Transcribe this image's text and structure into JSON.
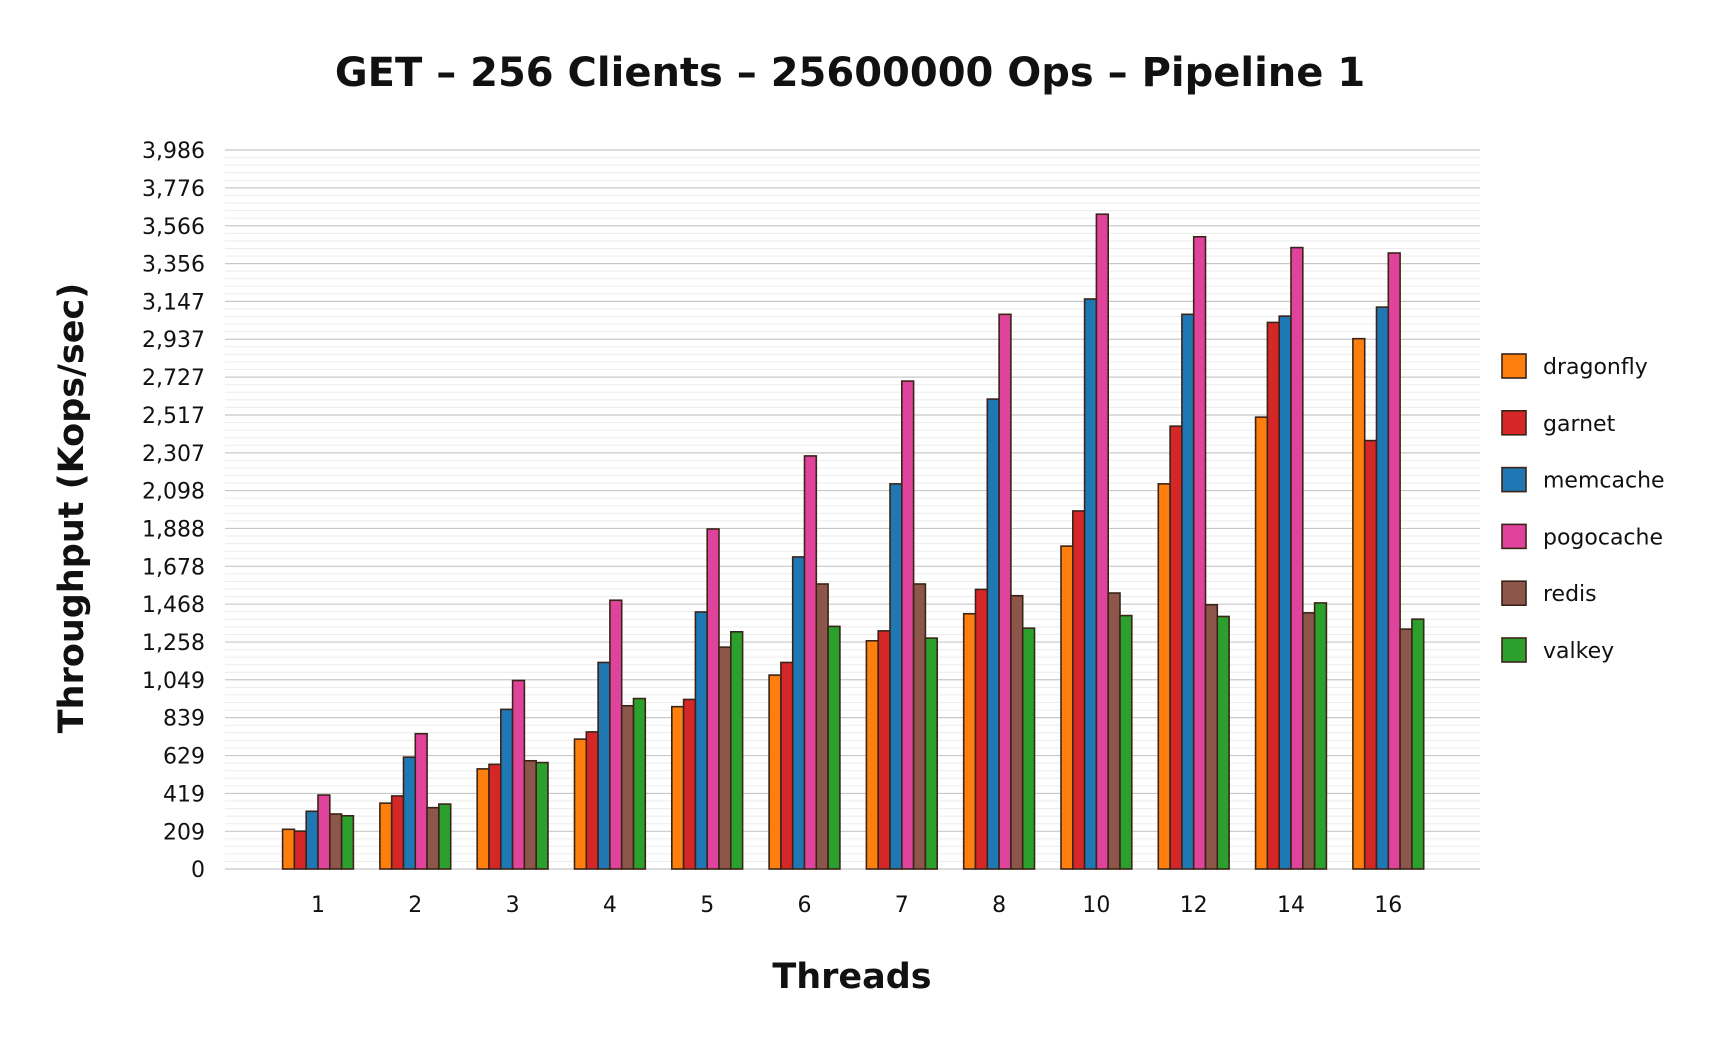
{
  "chart_data": {
    "type": "bar",
    "title": "GET – 256 Clients – 25600000 Ops – Pipeline 1",
    "xlabel": "Threads",
    "ylabel": "Throughput (Kops/sec)",
    "ylim": [
      0,
      3986
    ],
    "yticks": [
      0,
      209,
      419,
      629,
      839,
      1049,
      1258,
      1468,
      1678,
      1888,
      2098,
      2307,
      2517,
      2727,
      2937,
      3147,
      3356,
      3566,
      3776,
      3986
    ],
    "ytick_labels": [
      "0",
      "209",
      "419",
      "629",
      "839",
      "1,049",
      "1,258",
      "1,468",
      "1,678",
      "1,888",
      "2,098",
      "2,307",
      "2,517",
      "2,727",
      "2,937",
      "3,147",
      "3,356",
      "3,566",
      "3,776",
      "3,986"
    ],
    "minor_gridlines_per_major": 4,
    "grid": true,
    "legend_position": "right",
    "categories": [
      "1",
      "2",
      "3",
      "4",
      "5",
      "6",
      "7",
      "8",
      "10",
      "12",
      "14",
      "16"
    ],
    "series": [
      {
        "name": "dragonfly",
        "color": "#ff7f0e",
        "values": [
          220,
          365,
          555,
          720,
          900,
          1075,
          1265,
          1415,
          1790,
          2135,
          2505,
          2940
        ]
      },
      {
        "name": "garnet",
        "color": "#d62728",
        "values": [
          210,
          405,
          580,
          760,
          940,
          1145,
          1320,
          1550,
          1985,
          2455,
          3030,
          2375
        ]
      },
      {
        "name": "memcache",
        "color": "#1f77b4",
        "values": [
          320,
          620,
          885,
          1145,
          1425,
          1730,
          2135,
          2605,
          3160,
          3075,
          3065,
          3115
        ]
      },
      {
        "name": "pogocache",
        "color": "#e0439b",
        "values": [
          410,
          750,
          1045,
          1490,
          1885,
          2290,
          2705,
          3075,
          3630,
          3505,
          3445,
          3415
        ]
      },
      {
        "name": "redis",
        "color": "#8c564b",
        "values": [
          305,
          340,
          600,
          905,
          1230,
          1580,
          1580,
          1515,
          1530,
          1465,
          1420,
          1330
        ]
      },
      {
        "name": "valkey",
        "color": "#2ca02c",
        "values": [
          295,
          360,
          590,
          945,
          1315,
          1345,
          1280,
          1335,
          1405,
          1400,
          1475,
          1385
        ]
      }
    ]
  }
}
